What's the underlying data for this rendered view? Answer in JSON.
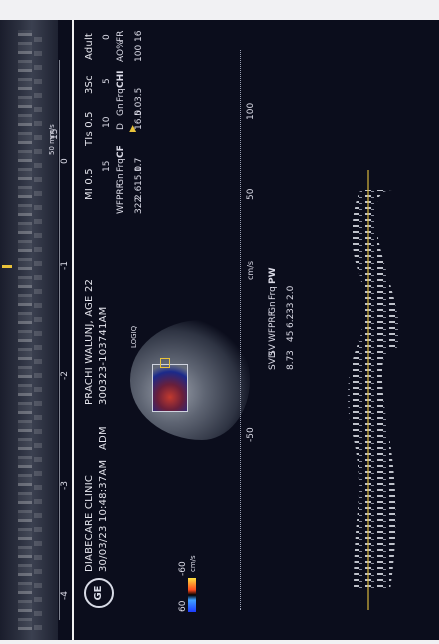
{
  "header": {
    "clinic": "DIABECARE CLINIC",
    "datetime": "30/03/23 10:48:37AM",
    "patient": "PRACHI WALUNJ, AGE 22",
    "patient_id": "300323-103741AM",
    "adm": "ADM",
    "mi": "MI 0.5",
    "tis": "TIs 0.5",
    "probe": "3Sc",
    "preset": "Adult",
    "logo": "GE"
  },
  "top_strip": {
    "ticks": [
      "-4",
      "-3",
      "-2",
      "-1",
      "0"
    ],
    "right_label": "15",
    "scale_text": "50 mm/s"
  },
  "mode_label": "LOGIQ",
  "colorbar": {
    "top": "60",
    "bottom": "-60",
    "unit": "cm/s"
  },
  "params": {
    "general": [
      {
        "k": "FR",
        "v": "16"
      },
      {
        "k": "AO%",
        "v": "100"
      }
    ],
    "chi": {
      "title": "CHI",
      "rows": [
        {
          "k": "Frq",
          "v": "3.5"
        },
        {
          "k": "Gn",
          "v": "5.0"
        },
        {
          "k": "D",
          "v": "16.0"
        }
      ],
      "depth_marks": [
        "0",
        "5",
        "10",
        "15"
      ]
    },
    "cf": {
      "title": "CF",
      "rows": [
        {
          "k": "Frq",
          "v": "1.7"
        },
        {
          "k": "Gn",
          "v": "15.0"
        },
        {
          "k": "PRF",
          "v": "2.6"
        },
        {
          "k": "WF",
          "v": "322"
        }
      ]
    },
    "pw": {
      "title": "PW",
      "rows": [
        {
          "k": "Frq",
          "v": "2.0"
        },
        {
          "k": "Gn",
          "v": "33"
        },
        {
          "k": "PRF",
          "v": "6.2"
        },
        {
          "k": "WF",
          "v": "45"
        },
        {
          "k": "SV",
          "v": "3"
        },
        {
          "k": "SVD",
          "v": "8.7"
        }
      ]
    }
  },
  "velocity_scale": {
    "unit": "cm/s",
    "labels": [
      "100",
      "50",
      "-50"
    ]
  },
  "colors": {
    "background": "#0b0d1c",
    "baseline": "#d8b63c",
    "text": "#e6e6ee",
    "accent": "#e8c23a"
  }
}
